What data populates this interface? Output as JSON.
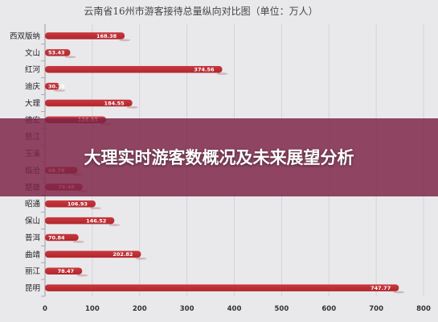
{
  "chart_data": {
    "type": "bar",
    "orientation": "horizontal",
    "title": "云南省16州市游客接待总量纵向对比图（单位：万人）",
    "categories": [
      "西双版纳",
      "文山",
      "红河",
      "迪庆",
      "大理",
      "德宏",
      "怒江",
      "玉溪",
      "临沧",
      "楚雄",
      "昭通",
      "保山",
      "普洱",
      "曲靖",
      "丽江",
      "昆明"
    ],
    "values": [
      168.38,
      53.43,
      374.56,
      30.78,
      184.55,
      128.93,
      null,
      null,
      68.78,
      79.48,
      106.93,
      146.52,
      70.84,
      202.82,
      78.47,
      747.77
    ],
    "data_labels": [
      "168.38",
      "53.43",
      "374.56",
      "30.78",
      "184.55",
      "128.93",
      "",
      "",
      "68.78",
      "79.48",
      "106.93",
      "146.52",
      "70.84",
      "202.82",
      "78.47",
      "747.77"
    ],
    "x_ticks": [
      "0",
      "100",
      "200",
      "300",
      "400",
      "500",
      "600",
      "700",
      "800"
    ],
    "xlim": [
      0,
      800
    ],
    "grid": true,
    "bar_color": "#b3262d"
  },
  "overlay": {
    "headline": "大理实时游客数概况及未来展望分析"
  }
}
